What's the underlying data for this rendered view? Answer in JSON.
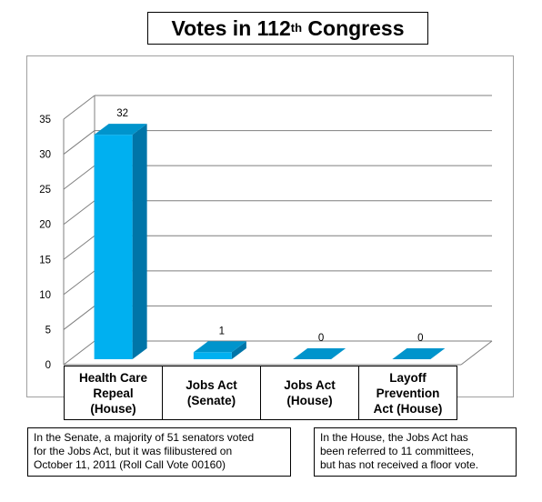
{
  "title": {
    "main": "Votes in 112",
    "sup": "th",
    "rest": " Congress"
  },
  "chart_data": {
    "type": "bar",
    "title": "Votes in 112th Congress",
    "categories": [
      "Health Care Repeal (House)",
      "Jobs Act (Senate)",
      "Jobs Act (House)",
      "Layoff Prevention Act (House)"
    ],
    "category_lines": [
      [
        "Health Care",
        "Repeal",
        "(House)"
      ],
      [
        "Jobs Act",
        "(Senate)"
      ],
      [
        "Jobs Act",
        "(House)"
      ],
      [
        "Layoff",
        "Prevention",
        "Act (House)"
      ]
    ],
    "values": [
      32,
      1,
      0,
      0
    ],
    "data_labels": [
      "32",
      "1",
      "0",
      "0"
    ],
    "ylim": [
      0,
      35
    ],
    "yticks": [
      "0",
      "5",
      "10",
      "15",
      "20",
      "25",
      "30",
      "35"
    ],
    "grid": true,
    "style": "3d",
    "colors": {
      "bar_front": "#00b0f0",
      "bar_side": "#0075a8",
      "bar_top": "#0094cc",
      "grid": "#7f7f7f"
    }
  },
  "notes": {
    "senate": [
      "In the Senate, a majority of 51 senators voted",
      "for the Jobs Act, but it was filibustered on",
      "October 11, 2011 (Roll Call Vote 00160)"
    ],
    "house": [
      "In the House, the Jobs Act has",
      "been referred to 11 committees,",
      "but has not received a floor vote."
    ]
  }
}
